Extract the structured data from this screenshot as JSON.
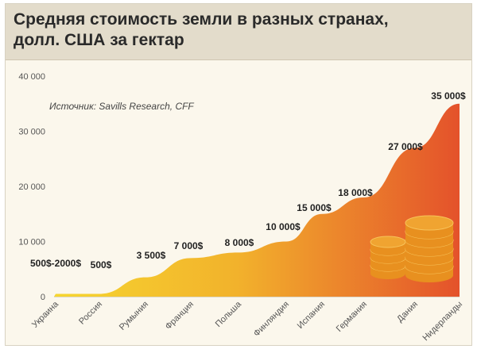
{
  "title_lines": [
    "Средняя стоимость земли в разных странах,",
    "долл. США за гектар"
  ],
  "source": "Источник: Savills Research, CFF",
  "colors": {
    "area_start": "#f6d62f",
    "area_end": "#e4522b",
    "coins": "#f0a431",
    "text": "#222222",
    "axis_text": "#555555"
  },
  "chart_data": {
    "type": "area",
    "title": "Средняя стоимость земли в разных странах, долл. США за гектар",
    "xlabel": "",
    "ylabel": "",
    "ylim": [
      0,
      40000
    ],
    "yticks": [
      0,
      10000,
      20000,
      30000,
      40000
    ],
    "ytick_labels": [
      "0",
      "10 000",
      "20 000",
      "30 000",
      "40 000"
    ],
    "grid": false,
    "categories": [
      "Украина",
      "Россия",
      "Румыния",
      "Франция",
      "Польша",
      "Финляндия",
      "Испания",
      "Германия",
      "Дания",
      "Нидерланды"
    ],
    "values": [
      500,
      500,
      3500,
      7000,
      8000,
      10000,
      15000,
      18000,
      27000,
      35000
    ],
    "data_labels": [
      "500$-2000$",
      "500$",
      "3 500$",
      "7 000$",
      "8 000$",
      "10 000$",
      "15 000$",
      "18 000$",
      "27 000$",
      "35 000$"
    ]
  }
}
